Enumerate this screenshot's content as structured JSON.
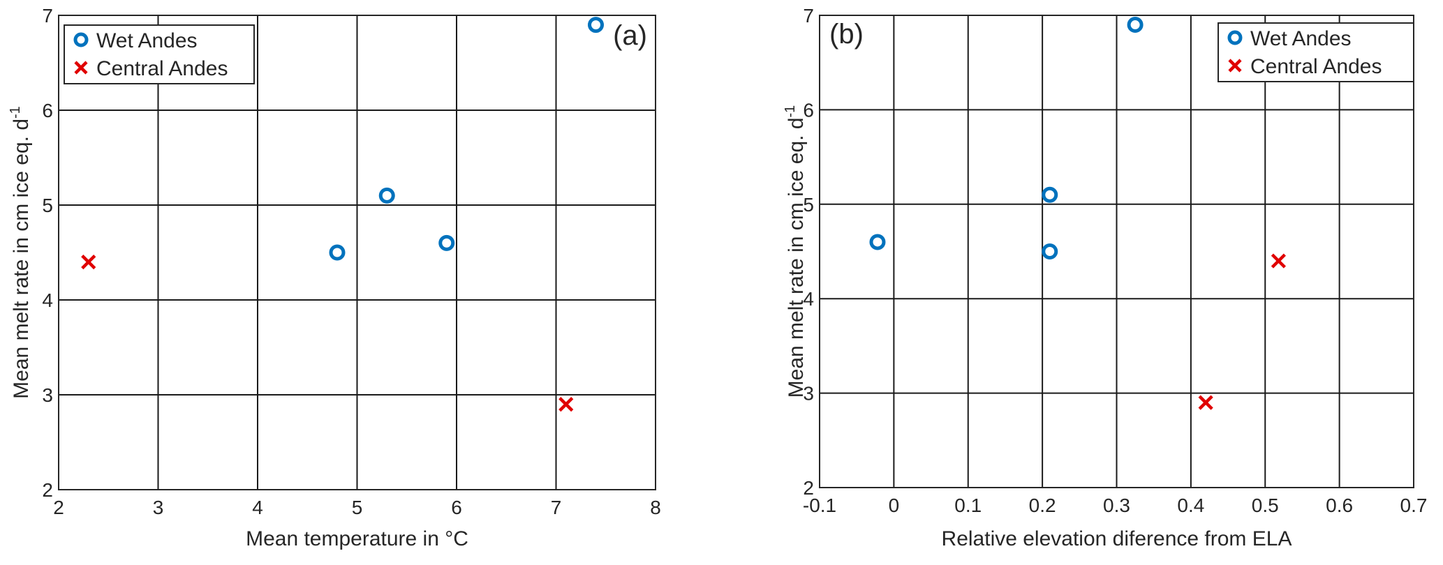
{
  "chart_data": [
    {
      "type": "scatter",
      "panel_label": "(a)",
      "xlabel": "Mean temperature in °C",
      "ylabel": "Mean melt rate in cm ice eq. d",
      "ylabel_sup": "-1",
      "xlim": [
        2,
        8
      ],
      "ylim": [
        2,
        7
      ],
      "xticks": [
        "2",
        "3",
        "4",
        "5",
        "6",
        "7",
        "8"
      ],
      "yticks": [
        "2",
        "3",
        "4",
        "5",
        "6",
        "7"
      ],
      "grid": true,
      "legend_position": "top-left",
      "series": [
        {
          "name": "Wet Andes",
          "marker": "circle",
          "color": "#0072BD",
          "points": [
            [
              4.8,
              4.5
            ],
            [
              5.3,
              5.1
            ],
            [
              5.9,
              4.6
            ],
            [
              7.4,
              6.9
            ]
          ]
        },
        {
          "name": "Central Andes",
          "marker": "x",
          "color": "#E00000",
          "points": [
            [
              2.3,
              4.4
            ],
            [
              7.1,
              2.9
            ]
          ]
        }
      ]
    },
    {
      "type": "scatter",
      "panel_label": "(b)",
      "xlabel": "Relative elevation diference from ELA",
      "ylabel": "Mean melt rate in cm ice eq.  d",
      "ylabel_sup": "-1",
      "xlim": [
        -0.1,
        0.7
      ],
      "ylim": [
        2,
        7
      ],
      "xticks": [
        "-0.1",
        "0",
        "0.1",
        "0.2",
        "0.3",
        "0.4",
        "0.5",
        "0.6",
        "0.7"
      ],
      "yticks": [
        "2",
        "3",
        "4",
        "5",
        "6",
        "7"
      ],
      "grid": true,
      "legend_position": "top-right",
      "series": [
        {
          "name": "Wet Andes",
          "marker": "circle",
          "color": "#0072BD",
          "points": [
            [
              -0.022,
              4.6
            ],
            [
              0.21,
              5.1
            ],
            [
              0.21,
              4.5
            ],
            [
              0.325,
              6.9
            ]
          ]
        },
        {
          "name": "Central Andes",
          "marker": "x",
          "color": "#E00000",
          "points": [
            [
              0.42,
              2.9
            ],
            [
              0.518,
              4.4
            ]
          ]
        }
      ]
    }
  ]
}
